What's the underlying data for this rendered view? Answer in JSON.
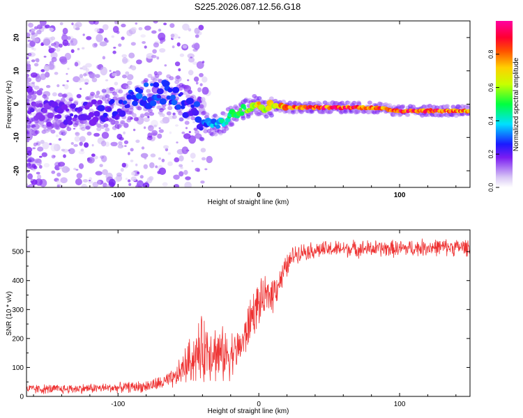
{
  "title": "S225.2026.087.12.56.G18",
  "colors": {
    "line": "#ee3333",
    "axis": "#000000"
  },
  "chart_data": [
    {
      "type": "heatmap",
      "title": "S225.2026.087.12.56.G18",
      "xlabel": "Height of straight line (km)",
      "ylabel": "Frequency (Hz)",
      "xlim": [
        -165,
        150
      ],
      "ylim": [
        -25,
        25
      ],
      "xticks": [
        -100,
        0,
        100
      ],
      "yticks": [
        -20,
        -10,
        0,
        10,
        20
      ],
      "ridge": {
        "x": [
          -160,
          -140,
          -120,
          -100,
          -90,
          -80,
          -70,
          -60,
          -50,
          -40,
          -35,
          -30,
          -25,
          -20,
          -15,
          -10,
          -5,
          0,
          5,
          10,
          15,
          20,
          40,
          60,
          80,
          100,
          120,
          140,
          150
        ],
        "freq": [
          -3,
          -3,
          -3,
          -1,
          1,
          2.5,
          4,
          2,
          -1,
          -5,
          -6,
          -6.5,
          -5.5,
          -3.5,
          -2.5,
          -1.5,
          -0.5,
          0,
          -1,
          -0.5,
          -0.5,
          -1,
          -1,
          -1,
          -1,
          -2,
          -2,
          -2,
          -2
        ],
        "amplitude": [
          0.2,
          0.2,
          0.22,
          0.25,
          0.3,
          0.3,
          0.3,
          0.3,
          0.25,
          0.3,
          0.35,
          0.4,
          0.45,
          0.5,
          0.55,
          0.6,
          0.7,
          0.75,
          0.7,
          0.75,
          0.8,
          0.9,
          0.95,
          0.95,
          0.9,
          0.95,
          0.95,
          0.9,
          0.85
        ]
      },
      "colorbar": {
        "label": "Normalized spectral amplitude",
        "range": [
          0,
          1
        ],
        "ticks": [
          "0.0",
          "0.2",
          "0.4",
          "0.6",
          "0.8"
        ]
      }
    },
    {
      "type": "line",
      "xlabel": "Height of straight line (km)",
      "ylabel": "SNR (10 * v/v)",
      "xlim": [
        -165,
        150
      ],
      "ylim": [
        0,
        575
      ],
      "xticks": [
        -100,
        0,
        100
      ],
      "yticks": [
        0,
        100,
        200,
        300,
        400,
        500
      ],
      "series": [
        {
          "name": "SNR",
          "x": [
            -165,
            -140,
            -120,
            -100,
            -80,
            -70,
            -60,
            -55,
            -50,
            -45,
            -40,
            -35,
            -30,
            -25,
            -20,
            -15,
            -10,
            -5,
            0,
            5,
            10,
            15,
            20,
            25,
            30,
            40,
            60,
            80,
            100,
            120,
            140,
            150
          ],
          "mean": [
            25,
            25,
            28,
            30,
            35,
            45,
            60,
            90,
            120,
            140,
            160,
            170,
            150,
            140,
            150,
            160,
            200,
            280,
            320,
            340,
            360,
            400,
            450,
            490,
            500,
            505,
            510,
            510,
            510,
            515,
            515,
            515
          ],
          "spread": [
            20,
            20,
            20,
            20,
            25,
            30,
            40,
            60,
            90,
            110,
            140,
            130,
            120,
            110,
            100,
            80,
            90,
            100,
            90,
            80,
            80,
            60,
            50,
            40,
            35,
            35,
            35,
            35,
            35,
            35,
            35,
            35
          ]
        }
      ]
    }
  ]
}
